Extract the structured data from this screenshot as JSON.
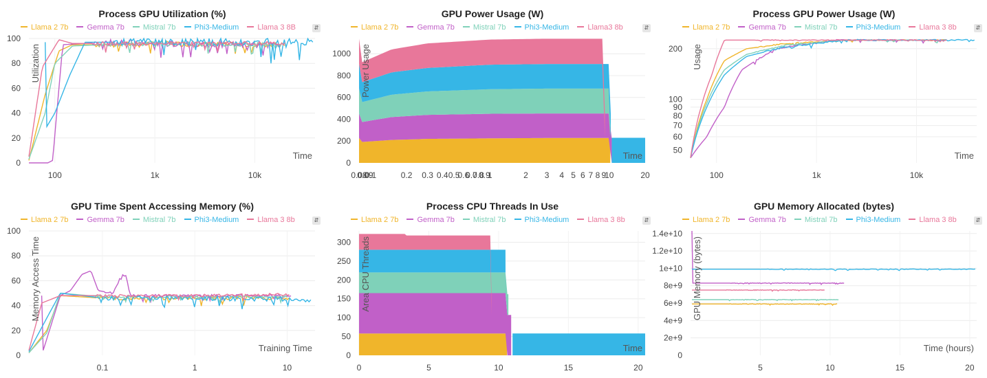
{
  "colors": {
    "llama2": "#f0b52b",
    "gemma": "#c160c8",
    "mistral": "#7fd1b9",
    "phi3": "#36b6e6",
    "llama3": "#e8779a"
  },
  "menu_icon": "chevron-updown-icon",
  "chart_data": [
    {
      "type": "line",
      "title": "Process GPU Utilization (%)",
      "xlabel": "Time",
      "ylabel": "Utilization",
      "xscale": "log",
      "xlim": [
        55,
        40000
      ],
      "ylim": [
        0,
        100
      ],
      "xticks": [
        100,
        1000,
        10000
      ],
      "xticklabels": [
        "100",
        "1k",
        "10k"
      ],
      "yticks": [
        0,
        20,
        40,
        60,
        80,
        100
      ],
      "yticklabels": [
        "0",
        "20",
        "40",
        "60",
        "80",
        "100"
      ],
      "legend": [
        "Llama 2 7b",
        "Gemma 7b",
        "Mistral 7b",
        "Phi3-Medium",
        "Llama 3 8B"
      ],
      "series": [
        {
          "name": "Llama 2 7b",
          "color": "#f0b52b",
          "x": [
            55,
            80,
            110,
            150,
            300,
            1000,
            5000,
            20000
          ],
          "y": [
            2,
            55,
            90,
            95,
            95,
            96,
            95,
            95
          ],
          "noise": 4
        },
        {
          "name": "Gemma 7b",
          "color": "#c160c8",
          "x": [
            55,
            85,
            95,
            120,
            300,
            1000,
            5000,
            18000
          ],
          "y": [
            0,
            0,
            2,
            95,
            97,
            96,
            95,
            95
          ],
          "noise": 5
        },
        {
          "name": "Mistral 7b",
          "color": "#7fd1b9",
          "x": [
            55,
            80,
            100,
            150,
            300,
            1000,
            5000,
            20000
          ],
          "y": [
            3,
            40,
            80,
            94,
            95,
            96,
            95,
            95
          ],
          "noise": 4
        },
        {
          "name": "Phi3-Medium",
          "color": "#36b6e6",
          "x": [
            80,
            100,
            140,
            200,
            400,
            1000,
            5000,
            38000
          ],
          "y": [
            27,
            40,
            70,
            97,
            97,
            97,
            97,
            97
          ],
          "noise": 6
        },
        {
          "name": "Llama 3 8B",
          "color": "#e8779a",
          "x": [
            55,
            75,
            110,
            150,
            300,
            1000,
            5000,
            20000
          ],
          "y": [
            5,
            77,
            99,
            96,
            96,
            96,
            96,
            96
          ],
          "noise": 3
        }
      ]
    },
    {
      "type": "area",
      "stacked": true,
      "title": "GPU Power Usage (W)",
      "xlabel": "Time",
      "ylabel": "Power Usage",
      "xscale": "log",
      "xlim": [
        0.08,
        20
      ],
      "ylim": [
        0,
        1140
      ],
      "xticks": [
        0.08,
        0.09,
        0.1,
        0.2,
        0.3,
        0.4,
        0.5,
        0.6,
        0.7,
        0.8,
        0.9,
        1,
        2,
        3,
        4,
        5,
        6,
        7,
        8,
        9,
        10,
        20
      ],
      "xticklabels": [
        "0.08",
        "0.09",
        "0.1",
        "0.2",
        "0.3",
        "0.4",
        "0.5",
        "0.6",
        "0.7",
        "0.8",
        "0.9",
        "1",
        "2",
        "3",
        "4",
        "5",
        "6",
        "7",
        "8",
        "9",
        "10",
        "20"
      ],
      "yticks": [
        0,
        200,
        400,
        600,
        800,
        1000
      ],
      "yticklabels": [
        "0",
        "200",
        "400",
        "600",
        "800",
        "1000"
      ],
      "legend": [
        "Llama 2 7b",
        "Gemma 7b",
        "Mistral 7b",
        "Phi3-Medium",
        "Llama3 8b"
      ],
      "series": [
        {
          "name": "Llama 2 7b",
          "color": "#f0b52b",
          "x": [
            0.08,
            0.15,
            0.3,
            1,
            3,
            10.2
          ],
          "y": [
            190,
            210,
            220,
            225,
            228,
            228
          ]
        },
        {
          "name": "Gemma 7b",
          "color": "#c160c8",
          "x": [
            0.08,
            0.15,
            0.3,
            1,
            3,
            10.5
          ],
          "y": [
            180,
            210,
            220,
            225,
            225,
            225
          ]
        },
        {
          "name": "Mistral 7b",
          "color": "#7fd1b9",
          "x": [
            0.08,
            0.15,
            0.3,
            1,
            3,
            10.2
          ],
          "y": [
            180,
            205,
            215,
            225,
            228,
            228
          ]
        },
        {
          "name": "Phi3-Medium",
          "color": "#36b6e6",
          "x": [
            0.08,
            0.15,
            0.3,
            1,
            3,
            10.3
          ],
          "y": [
            180,
            205,
            215,
            225,
            225,
            225
          ]
        },
        {
          "name": "Llama3 8b",
          "color": "#e8779a",
          "x": [
            0.08,
            0.15,
            0.3,
            1,
            3,
            9.2
          ],
          "y": [
            180,
            210,
            225,
            230,
            232,
            232
          ]
        }
      ],
      "tail": {
        "color": "#36b6e6",
        "x": [
          10.5,
          20
        ],
        "y": [
          230,
          230
        ]
      }
    },
    {
      "type": "line",
      "title": "Process GPU Power Usage (W)",
      "xlabel": "Time",
      "ylabel": "Usage",
      "xscale": "log",
      "yscale": "log",
      "xlim": [
        55,
        40000
      ],
      "ylim": [
        42,
        230
      ],
      "xticks": [
        100,
        1000,
        10000
      ],
      "xticklabels": [
        "100",
        "1k",
        "10k"
      ],
      "yticks": [
        50,
        60,
        70,
        80,
        90,
        100,
        200
      ],
      "yticklabels": [
        "50",
        "60",
        "70",
        "80",
        "90",
        "100",
        "200"
      ],
      "legend": [
        "Llama 2 7b",
        "Gemma 7b",
        "Mistral 7b",
        "Phi3-Medium",
        "Llama 3 8b"
      ],
      "series": [
        {
          "name": "Llama 2 7b",
          "color": "#f0b52b",
          "x": [
            55,
            80,
            120,
            200,
            500,
            2000,
            20000
          ],
          "y": [
            45,
            100,
            170,
            200,
            215,
            225,
            225
          ],
          "noise": 3
        },
        {
          "name": "Gemma 7b",
          "color": "#c160c8",
          "x": [
            55,
            80,
            120,
            180,
            400,
            1500,
            18000
          ],
          "y": [
            45,
            60,
            90,
            150,
            200,
            225,
            225
          ],
          "noise": 3
        },
        {
          "name": "Mistral 7b",
          "color": "#7fd1b9",
          "x": [
            55,
            80,
            120,
            200,
            500,
            2000,
            20000
          ],
          "y": [
            45,
            95,
            150,
            185,
            210,
            225,
            225
          ],
          "noise": 3
        },
        {
          "name": "Phi3-Medium",
          "color": "#36b6e6",
          "x": [
            55,
            80,
            120,
            200,
            500,
            2000,
            38000
          ],
          "y": [
            45,
            90,
            140,
            180,
            205,
            225,
            225
          ],
          "noise": 4
        },
        {
          "name": "Llama 3 8b",
          "color": "#e8779a",
          "x": [
            55,
            70,
            90,
            120,
            500,
            2000,
            20000
          ],
          "y": [
            45,
            90,
            140,
            225,
            225,
            225,
            225
          ],
          "noise": 2
        }
      ]
    },
    {
      "type": "line",
      "title": "GPU Time Spent Accessing Memory (%)",
      "xlabel": "Training Time",
      "ylabel": "Memory Access Time",
      "xscale": "log",
      "xlim": [
        0.016,
        20
      ],
      "ylim": [
        0,
        100
      ],
      "xticks": [
        0.1,
        1,
        10
      ],
      "xticklabels": [
        "0.1",
        "1",
        "10"
      ],
      "yticks": [
        0,
        20,
        40,
        60,
        80,
        100
      ],
      "yticklabels": [
        "0",
        "20",
        "40",
        "60",
        "80",
        "100"
      ],
      "legend": [
        "Llama 2 7b",
        "Gemma 7b",
        "Mistral 7b",
        "Phi3-Medium",
        "Llama 3 8b"
      ],
      "series": [
        {
          "name": "Llama 2 7b",
          "color": "#f0b52b",
          "x": [
            0.016,
            0.025,
            0.035,
            0.1,
            1,
            10.5
          ],
          "y": [
            2,
            20,
            48,
            46,
            46,
            46
          ],
          "noise": 3
        },
        {
          "name": "Gemma 7b",
          "color": "#c160c8",
          "x": [
            0.022,
            0.035,
            0.045,
            0.06,
            0.075,
            0.09,
            0.13,
            0.16,
            0.18,
            0.2,
            1,
            11
          ],
          "y": [
            0,
            48,
            52,
            65,
            68,
            52,
            50,
            64,
            64,
            48,
            48,
            48
          ],
          "noise": 2
        },
        {
          "name": "Mistral 7b",
          "color": "#7fd1b9",
          "x": [
            0.016,
            0.025,
            0.035,
            0.1,
            1,
            10
          ],
          "y": [
            2,
            18,
            50,
            47,
            47,
            47
          ],
          "noise": 2
        },
        {
          "name": "Phi3-Medium",
          "color": "#36b6e6",
          "x": [
            0.016,
            0.025,
            0.035,
            0.1,
            1,
            18
          ],
          "y": [
            3,
            30,
            50,
            46,
            46,
            45
          ],
          "noise": 4
        },
        {
          "name": "Llama 3 8b",
          "color": "#e8779a",
          "x": [
            0.016,
            0.022,
            0.035,
            0.1,
            1,
            10.5
          ],
          "y": [
            4,
            42,
            48,
            48,
            48,
            49
          ],
          "noise": 2
        }
      ]
    },
    {
      "type": "area",
      "stacked": true,
      "title": "Process CPU Threads In Use",
      "xlabel": "Time",
      "ylabel": "Area CPU Threads",
      "xscale": "linear",
      "xlim": [
        0,
        20.5
      ],
      "ylim": [
        0,
        330
      ],
      "xticks": [
        0,
        5,
        10,
        15,
        20
      ],
      "xticklabels": [
        "0",
        "5",
        "10",
        "15",
        "20"
      ],
      "yticks": [
        0,
        50,
        100,
        150,
        200,
        250,
        300
      ],
      "yticklabels": [
        "0",
        "50",
        "100",
        "150",
        "200",
        "250",
        "300"
      ],
      "legend": [
        "Llama 2 7b",
        "Gemma 7b",
        "Mistral 7b",
        "Phi3-Medium",
        "Llama 3 8b"
      ],
      "series": [
        {
          "name": "Llama 2 7b",
          "color": "#f0b52b",
          "x": [
            0,
            10.6
          ],
          "y": [
            58,
            58
          ]
        },
        {
          "name": "Gemma 7b",
          "color": "#c160c8",
          "x": [
            0,
            10.9
          ],
          "y": [
            107,
            107
          ]
        },
        {
          "name": "Mistral 7b",
          "color": "#7fd1b9",
          "x": [
            0,
            10.7
          ],
          "y": [
            55,
            55
          ]
        },
        {
          "name": "Phi3-Medium",
          "color": "#36b6e6",
          "x": [
            0,
            10.5
          ],
          "y": [
            60,
            60
          ]
        },
        {
          "name": "Llama 3 8b",
          "color": "#e8779a",
          "x": [
            0,
            3.3,
            3.4,
            9.5
          ],
          "y": [
            42,
            42,
            38,
            38
          ]
        }
      ],
      "tail": {
        "color": "#36b6e6",
        "x": [
          11,
          20.5
        ],
        "y": [
          58,
          58
        ]
      }
    },
    {
      "type": "line",
      "title": "GPU Memory Allocated (bytes)",
      "xlabel": "Time (hours)",
      "ylabel": "GPU Memory (bytes)",
      "xscale": "linear",
      "xlim": [
        0,
        20.5
      ],
      "ylim": [
        0,
        14300000000
      ],
      "xticks": [
        5,
        10,
        15,
        20
      ],
      "xticklabels": [
        "5",
        "10",
        "15",
        "20"
      ],
      "yticks": [
        0,
        2000000000,
        4000000000,
        6000000000,
        8000000000,
        10000000000,
        12000000000,
        14000000000
      ],
      "yticklabels": [
        "0",
        "2e+9",
        "4e+9",
        "6e+9",
        "8e+9",
        "1e+10",
        "1.2e+10",
        "1.4e+10"
      ],
      "legend": [
        "Llama 2 7b",
        "Gemma 7b",
        "Mistral 7b",
        "Phi3-Medium",
        "Llama 3 8b"
      ],
      "series": [
        {
          "name": "Llama 2 7b",
          "color": "#f0b52b",
          "x": [
            0.1,
            10.5
          ],
          "y": [
            5900000000,
            5900000000
          ],
          "noise": 60000000
        },
        {
          "name": "Gemma 7b",
          "color": "#c160c8",
          "x": [
            0.1,
            0.15,
            11
          ],
          "y": [
            14300000000,
            8300000000,
            8300000000
          ],
          "noise": 60000000
        },
        {
          "name": "Mistral 7b",
          "color": "#7fd1b9",
          "x": [
            0.1,
            10.6
          ],
          "y": [
            6400000000,
            6400000000
          ],
          "noise": 60000000
        },
        {
          "name": "Phi3-Medium",
          "color": "#36b6e6",
          "x": [
            0.1,
            20.4
          ],
          "y": [
            9900000000,
            9900000000
          ],
          "noise": 70000000
        },
        {
          "name": "Llama 3 8b",
          "color": "#e8779a",
          "x": [
            0.1,
            9.6
          ],
          "y": [
            7500000000,
            7500000000
          ],
          "noise": 60000000
        }
      ]
    }
  ]
}
